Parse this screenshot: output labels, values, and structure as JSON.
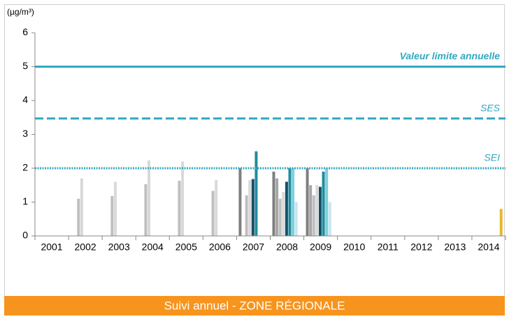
{
  "chart_data": {
    "type": "bar",
    "y_label": "(µg/m³)",
    "footer": "Suivi annuel - ZONE RÉGIONALE",
    "categories": [
      "2001",
      "2002",
      "2003",
      "2004",
      "2005",
      "2006",
      "2007",
      "2008",
      "2009",
      "2010",
      "2011",
      "2012",
      "2013",
      "2014"
    ],
    "series": [
      {
        "color": "#7f7f7f",
        "values": [
          null,
          null,
          null,
          null,
          null,
          null,
          2.0,
          1.9,
          2.0,
          null,
          null,
          null,
          null,
          null
        ]
      },
      {
        "color": "#a6a6a6",
        "values": [
          null,
          null,
          null,
          null,
          null,
          null,
          null,
          1.7,
          1.5,
          null,
          null,
          null,
          null,
          null
        ]
      },
      {
        "color": "#bfbfbf",
        "values": [
          null,
          1.1,
          1.18,
          1.53,
          1.63,
          1.33,
          1.2,
          1.1,
          1.2,
          null,
          null,
          null,
          null,
          null
        ]
      },
      {
        "color": "#d9d9d9",
        "values": [
          null,
          1.7,
          1.6,
          2.23,
          2.2,
          1.65,
          1.65,
          1.3,
          1.5,
          null,
          null,
          null,
          null,
          null
        ]
      },
      {
        "color": "#17506a",
        "values": [
          null,
          null,
          null,
          null,
          null,
          null,
          1.68,
          1.6,
          1.45,
          null,
          null,
          null,
          null,
          null
        ]
      },
      {
        "color": "#1f8c9c",
        "values": [
          null,
          null,
          null,
          null,
          null,
          null,
          2.5,
          2.0,
          1.9,
          null,
          null,
          null,
          null,
          null
        ]
      },
      {
        "color": "#7ecfdc",
        "values": [
          null,
          null,
          null,
          null,
          null,
          null,
          null,
          2.0,
          2.0,
          null,
          null,
          null,
          null,
          null
        ]
      },
      {
        "color": "#c6e6ef",
        "values": [
          null,
          null,
          null,
          null,
          null,
          null,
          null,
          1.0,
          1.0,
          null,
          null,
          null,
          null,
          null
        ]
      },
      {
        "color": "#e6b830",
        "values": [
          null,
          null,
          null,
          null,
          null,
          null,
          null,
          null,
          null,
          null,
          null,
          null,
          null,
          0.8
        ]
      }
    ],
    "reference_lines": [
      {
        "label": "Valeur limite annuelle",
        "value": 5,
        "style": "solid",
        "color": "#31a9c1"
      },
      {
        "label": "SES",
        "value": 3.47,
        "style": "dashed",
        "color": "#31a9c1"
      },
      {
        "label": "SEI",
        "value": 2,
        "style": "dotted",
        "color": "#31a9c1"
      }
    ],
    "ylim": [
      0,
      6
    ],
    "yticks": [
      0,
      1,
      2,
      3,
      4,
      5,
      6
    ],
    "grid": false
  }
}
